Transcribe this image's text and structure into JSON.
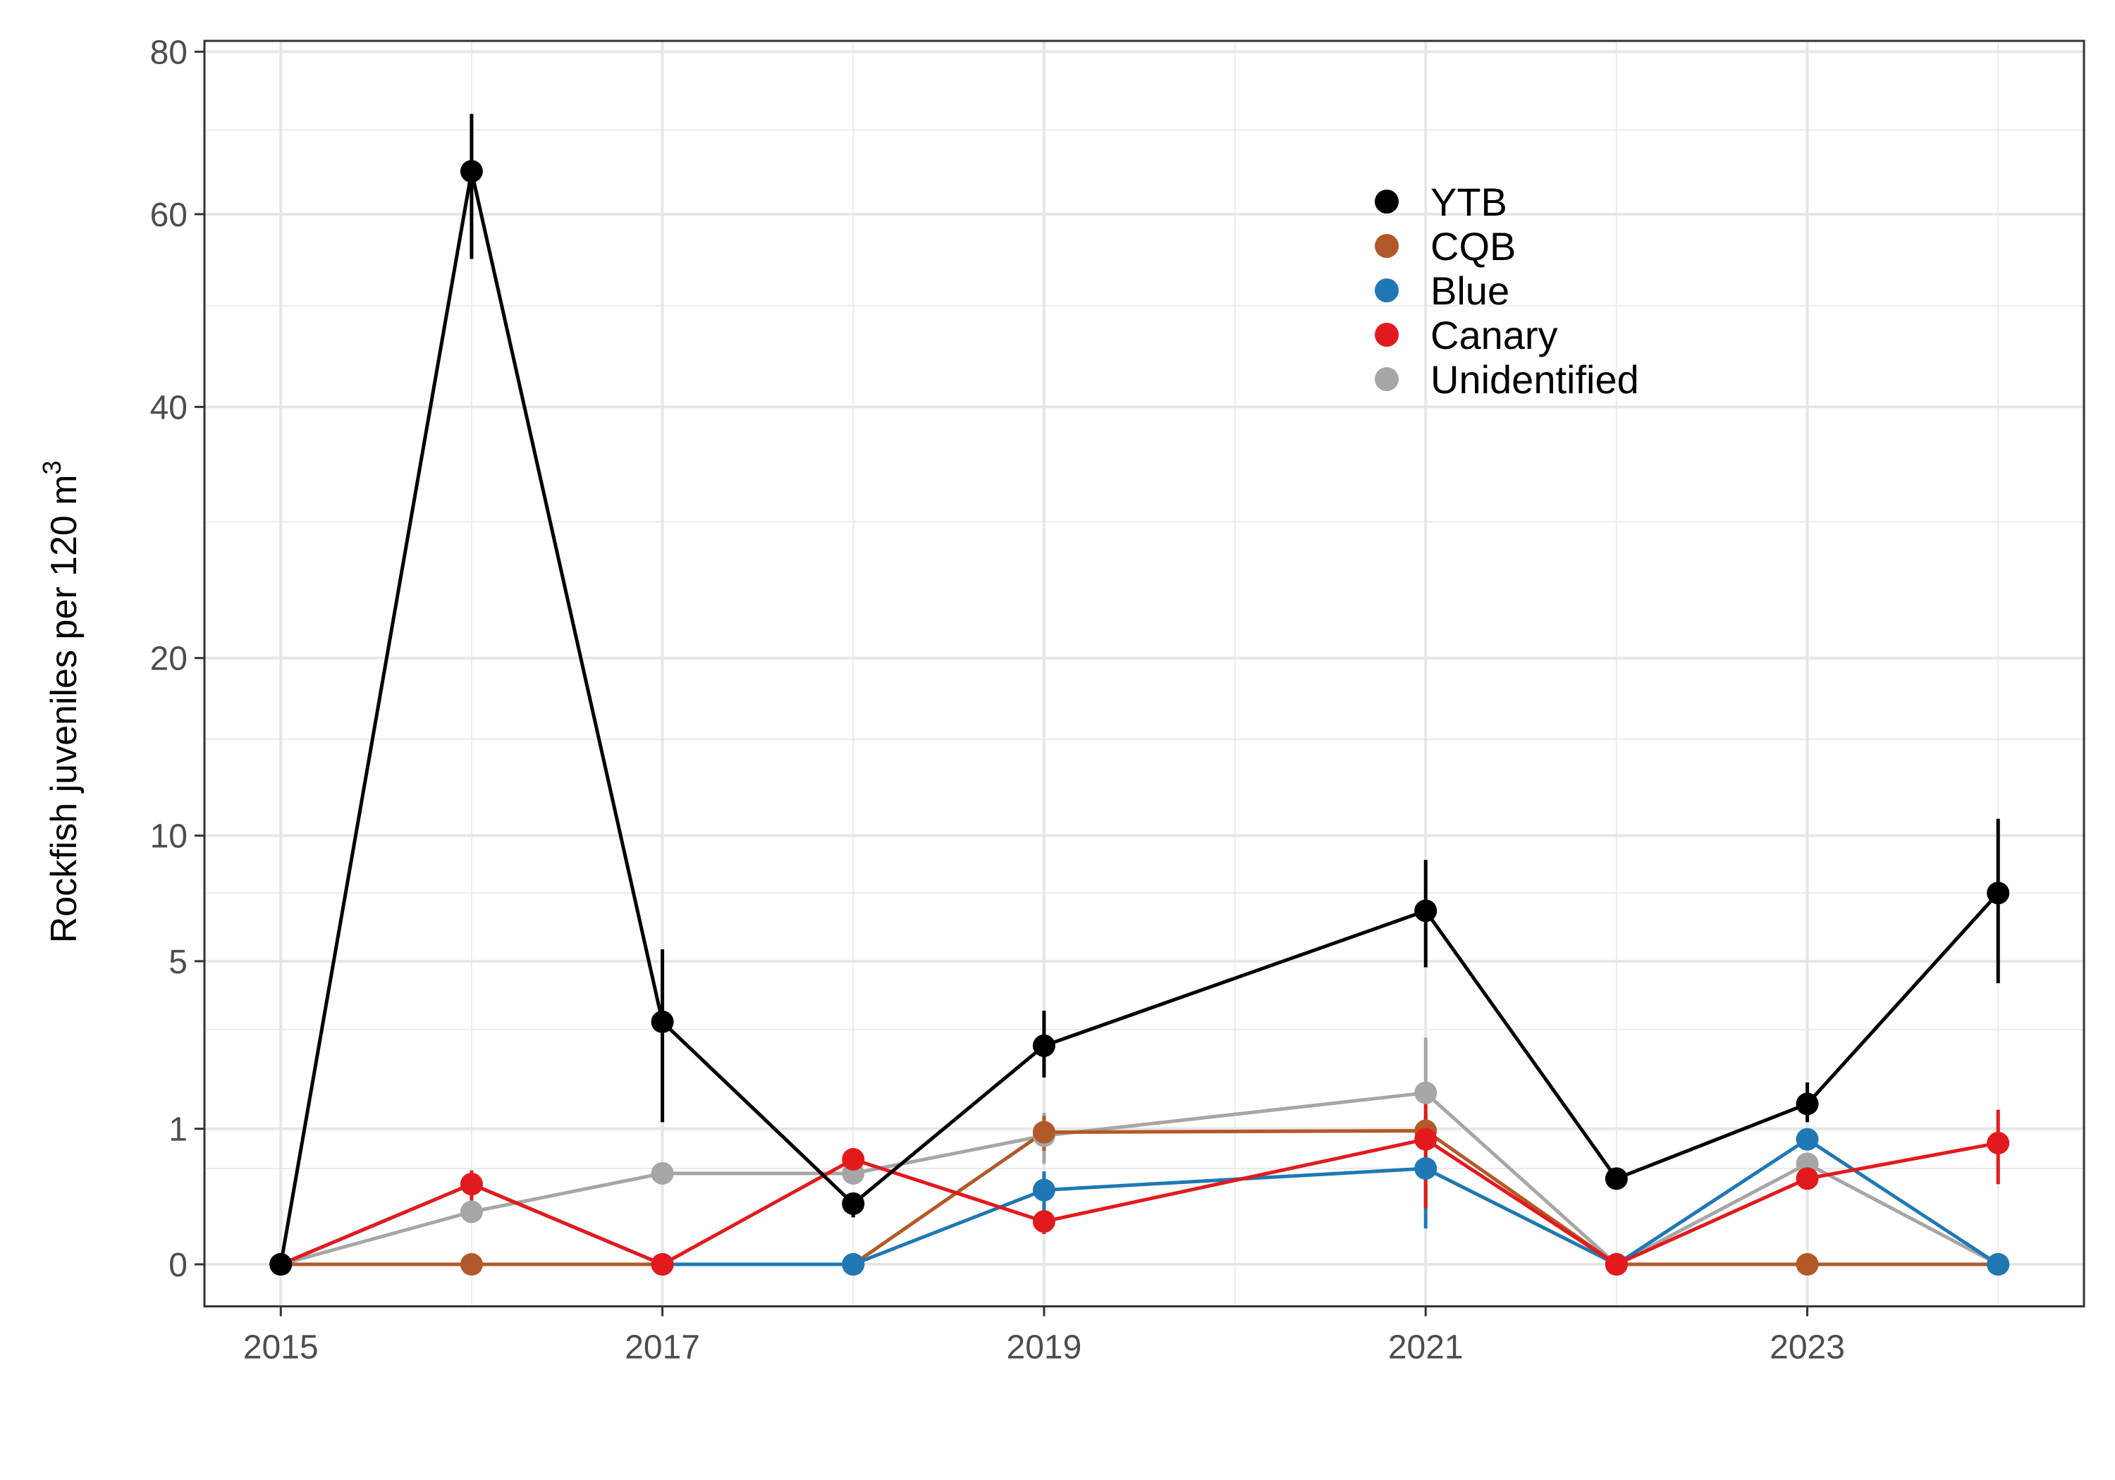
{
  "chart_data": {
    "type": "line",
    "title": "",
    "xlabel": "",
    "ylabel": "Rockfish juveniles per 120 m",
    "ylabel_superscript": "3",
    "y_scale": "square-root (pseudo-log style) transformed",
    "x_ticks": [
      2015,
      2017,
      2019,
      2021,
      2023
    ],
    "y_ticks": [
      0,
      1,
      5,
      10,
      20,
      40,
      60,
      80
    ],
    "xlim": [
      2014.6,
      2024.45
    ],
    "ylim": [
      0,
      80
    ],
    "grid": true,
    "legend_position": "top-center",
    "x": [
      2015,
      2016,
      2017,
      2018,
      2019,
      2021,
      2022,
      2023,
      2024
    ],
    "series": [
      {
        "name": "Unidentified",
        "color": "#a6a6a6",
        "values": [
          0,
          0.15,
          0.45,
          0.45,
          0.9,
          1.6,
          0,
          0.55,
          0
        ],
        "error_low": [
          0,
          0.1,
          0.4,
          0.38,
          0.55,
          0.8,
          0,
          0.45,
          0
        ],
        "error_high": [
          0,
          0.2,
          0.5,
          0.52,
          1.25,
          2.8,
          0,
          0.65,
          0
        ]
      },
      {
        "name": "CQB",
        "color": "#b15928",
        "values": [
          0,
          0,
          0,
          0,
          0.95,
          0.97,
          0,
          0,
          0
        ],
        "error_low": [
          0,
          0,
          0,
          0,
          0.7,
          0.75,
          0,
          0,
          0
        ],
        "error_high": [
          0,
          0,
          0,
          0,
          1.2,
          1.19,
          0,
          0,
          0
        ]
      },
      {
        "name": "Blue",
        "color": "#1f78b4",
        "values": [
          0,
          0.35,
          0,
          0,
          0.3,
          0.5,
          0,
          0.85,
          0
        ],
        "error_low": [
          0,
          0.28,
          0,
          0,
          0.13,
          0.07,
          0,
          0.75,
          0
        ],
        "error_high": [
          0,
          0.42,
          0,
          0,
          0.47,
          0.93,
          0,
          0.95,
          0
        ]
      },
      {
        "name": "Canary",
        "color": "#e31a1c",
        "values": [
          0,
          0.35,
          0,
          0.6,
          0.1,
          0.85,
          0,
          0.4,
          0.8
        ],
        "error_low": [
          0,
          0.22,
          0,
          0.55,
          0.05,
          0.17,
          0,
          0.32,
          0.35
        ],
        "error_high": [
          0,
          0.48,
          0,
          0.65,
          0.15,
          1.53,
          0,
          0.48,
          1.3
        ]
      },
      {
        "name": "YTB",
        "color": "#000000",
        "values": [
          0,
          65,
          3.2,
          0.2,
          2.6,
          6.8,
          0.4,
          1.4,
          7.5
        ],
        "error_low": [
          0,
          55,
          1.1,
          0.12,
          1.9,
          4.8,
          0.33,
          1.1,
          4.3
        ],
        "error_high": [
          0,
          72,
          5.4,
          0.28,
          3.5,
          8.9,
          0.47,
          1.8,
          10.8
        ]
      }
    ],
    "legend_order": [
      "YTB",
      "CQB",
      "Blue",
      "Canary",
      "Unidentified"
    ]
  }
}
